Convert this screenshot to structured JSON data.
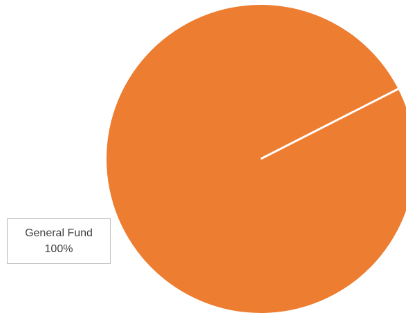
{
  "chart_data": {
    "type": "pie",
    "categories": [
      "General Fund"
    ],
    "values": [
      100
    ],
    "data_labels": [
      {
        "category": "General Fund",
        "percent": "100%"
      }
    ],
    "colors": [
      "#ed7d31"
    ],
    "separator_color": "#ffffff",
    "title": "",
    "legend": false
  }
}
